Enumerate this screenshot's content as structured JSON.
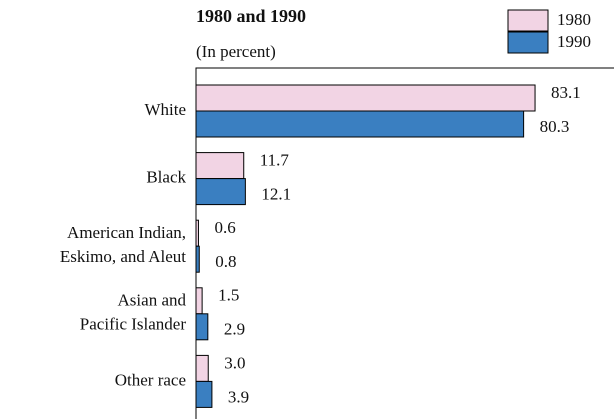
{
  "chart_data": {
    "type": "bar",
    "orientation": "horizontal",
    "title": "1980 and 1990",
    "subtitle": "(In percent)",
    "categories": [
      [
        "White"
      ],
      [
        "Black"
      ],
      [
        "American Indian,",
        "Eskimo, and Aleut"
      ],
      [
        "Asian and",
        "Pacific Islander"
      ],
      [
        "Other race"
      ]
    ],
    "series": [
      {
        "name": "1980",
        "color": "#f2d4e4",
        "values": [
          83.1,
          11.7,
          0.6,
          1.5,
          3.0
        ],
        "value_labels": [
          "83.1",
          "11.7",
          "0.6",
          "1.5",
          "3.0"
        ]
      },
      {
        "name": "1990",
        "color": "#3a7fc1",
        "values": [
          80.3,
          12.1,
          0.8,
          2.9,
          3.9
        ],
        "value_labels": [
          "80.3",
          "12.1",
          "0.8",
          "2.9",
          "3.9"
        ]
      }
    ],
    "legend": "top-right"
  }
}
